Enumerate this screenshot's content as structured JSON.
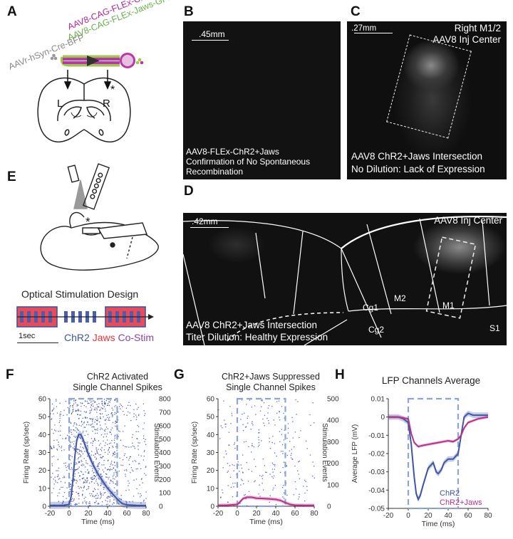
{
  "panels": {
    "A": {
      "label": "A",
      "virus_mix": "AAVr-hSyn-Cre-BFP",
      "virus_chr2": "AAV8-CAG-FLEx-ChR2-tdT",
      "virus_jaws": "AAV8-CAG-FLEx-Jaws-GFP",
      "left": "L",
      "right": "R",
      "asterisk": "*"
    },
    "B": {
      "label": "B",
      "scale": ".45mm",
      "caption1": "AAV8-FLEx-ChR2+Jaws",
      "caption2": "Confirmation of No Spontaneous",
      "caption3": "Recombination"
    },
    "C": {
      "label": "C",
      "scale": ".27mm",
      "title1": "Right M1/2",
      "title2": "AAV8 Inj Center",
      "caption1": "AAV8 ChR2+Jaws Intersection",
      "caption2": "No Dilution: Lack of Expression"
    },
    "D": {
      "label": "D",
      "scale": ".42mm",
      "title": "AAV8 Inj Center",
      "region_cg1": "Cg1",
      "region_m2": "M2",
      "region_m1": "M1",
      "region_cg2": "Cg2",
      "region_s1": "S1",
      "caption1": "AAV8 ChR2+Jaws Intersection",
      "caption2": "Titer Dilution: Healthy Expression"
    },
    "E": {
      "label": "E",
      "asterisk": "*",
      "design_title": "Optical Stimulation Design",
      "timescale": "1sec",
      "legend_chr2": "ChR2",
      "legend_jaws": "Jaws",
      "legend_costim": "Co-Stim"
    },
    "F": {
      "label": "F",
      "title1": "ChR2 Activated",
      "title2": "Single Channel Spikes"
    },
    "G": {
      "label": "G",
      "title1": "ChR2+Jaws Suppressed",
      "title2": "Single Channel Spikes"
    },
    "H": {
      "label": "H",
      "title": "LFP Channels Average"
    }
  },
  "colors": {
    "chr2": "#3f55a6",
    "jaws": "#e8323c",
    "costim": "#8e3fa0",
    "chr2_jaws": "#b8318a",
    "raster": "#2233aa",
    "stim_window": "#8aa6d8"
  },
  "chart_data": [
    {
      "type": "line",
      "title": "ChR2 Activated Single Channel Spikes",
      "xlabel": "Time (ms)",
      "ylabel": "Firing Rate (sp/sec)",
      "y2label": "Stimulation Events",
      "xlim": [
        -20,
        80
      ],
      "ylim": [
        0,
        60
      ],
      "y2lim": [
        0,
        800
      ],
      "xticks": [
        -20,
        0,
        20,
        40,
        60,
        80
      ],
      "yticks": [
        0,
        10,
        20,
        30,
        40,
        50,
        60
      ],
      "y2ticks": [
        0,
        100,
        200,
        300,
        400,
        500,
        600,
        700,
        800
      ],
      "stim_window": [
        0,
        50
      ],
      "series": [
        {
          "color": "#3f55a6",
          "x": [
            -20,
            -10,
            -5,
            0,
            2,
            4,
            6,
            8,
            10,
            12,
            14,
            16,
            20,
            25,
            30,
            35,
            40,
            45,
            50,
            52,
            55,
            60,
            70,
            80
          ],
          "y": [
            0.5,
            0.5,
            0.6,
            1,
            5,
            15,
            28,
            37,
            40,
            40,
            38,
            35,
            29,
            23,
            18,
            14,
            10,
            7,
            4,
            3,
            1.5,
            0.8,
            0.5,
            0.4
          ],
          "band": 2
        }
      ]
    },
    {
      "type": "line",
      "title": "ChR2+Jaws Suppressed Single Channel Spikes",
      "xlabel": "Time (ms)",
      "ylabel": "Firing Rate (sp/sec)",
      "y2label": "Stimulation Events",
      "xlim": [
        -20,
        80
      ],
      "ylim": [
        0,
        60
      ],
      "y2lim": [
        0,
        500
      ],
      "xticks": [
        -20,
        0,
        20,
        40,
        60,
        80
      ],
      "yticks": [
        0,
        10,
        20,
        30,
        40,
        50,
        60
      ],
      "y2ticks": [
        0,
        100,
        200,
        300,
        400,
        500
      ],
      "stim_window": [
        0,
        50
      ],
      "series": [
        {
          "color": "#b8318a",
          "x": [
            -20,
            -10,
            0,
            3,
            6,
            10,
            15,
            20,
            30,
            40,
            45,
            50,
            55,
            60,
            70,
            80
          ],
          "y": [
            0.5,
            0.6,
            1,
            2.5,
            4.3,
            5,
            5,
            4.5,
            4.2,
            3.8,
            3.2,
            2,
            1,
            0.6,
            0.5,
            0.5
          ],
          "band": 1
        }
      ]
    },
    {
      "type": "line",
      "title": "LFP Channels Average",
      "xlabel": "Time (ms)",
      "ylabel": "Average LFP (mV)",
      "xlim": [
        -20,
        80
      ],
      "ylim": [
        -0.05,
        0.01
      ],
      "xticks": [
        -20,
        0,
        20,
        40,
        60,
        80
      ],
      "yticks": [
        0.01,
        0,
        -0.01,
        -0.02,
        -0.03,
        -0.04,
        -0.05
      ],
      "stim_window": [
        0,
        50
      ],
      "legend_position": "bottom-right",
      "series": [
        {
          "name": "ChR2",
          "color": "#3f55a6",
          "x": [
            -20,
            -10,
            -5,
            0,
            3,
            6,
            8,
            10,
            12,
            15,
            20,
            25,
            28,
            30,
            33,
            36,
            40,
            45,
            50,
            53,
            56,
            60,
            65,
            70,
            80
          ],
          "y": [
            0,
            0,
            -0.001,
            -0.003,
            -0.015,
            -0.033,
            -0.042,
            -0.045,
            -0.043,
            -0.037,
            -0.028,
            -0.025,
            -0.03,
            -0.031,
            -0.029,
            -0.025,
            -0.023,
            -0.023,
            -0.02,
            -0.01,
            0,
            0.002,
            0.001,
            0.001,
            0.001
          ],
          "band": 0.0015
        },
        {
          "name": "ChR2+Jaws",
          "color": "#b8318a",
          "x": [
            -20,
            -10,
            0,
            3,
            6,
            10,
            15,
            20,
            25,
            30,
            35,
            40,
            45,
            50,
            53,
            56,
            60,
            70,
            80
          ],
          "y": [
            0,
            0,
            -0.001,
            -0.009,
            -0.014,
            -0.0162,
            -0.0155,
            -0.015,
            -0.0145,
            -0.014,
            -0.0135,
            -0.013,
            -0.0135,
            -0.012,
            -0.01,
            -0.006,
            -0.003,
            -0.001,
            0
          ],
          "band": 0.0008
        }
      ]
    }
  ]
}
